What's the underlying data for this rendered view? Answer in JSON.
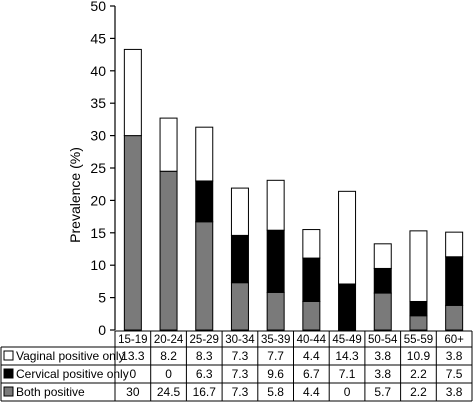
{
  "chart_data": {
    "type": "bar",
    "stacked": true,
    "ylabel": "Prevalence (%)",
    "xlabel": "",
    "ylim": [
      0,
      50
    ],
    "yticks": [
      0,
      5,
      10,
      15,
      20,
      25,
      30,
      35,
      40,
      45,
      50
    ],
    "grid": false,
    "legend_placement": "table-below",
    "categories": [
      "15-19",
      "20-24",
      "25-29",
      "30-34",
      "35-39",
      "40-44",
      "45-49",
      "50-54",
      "55-59",
      "60+"
    ],
    "series": [
      {
        "name": "Both positive",
        "color": "#7a7a7a",
        "values": [
          30,
          24.5,
          16.7,
          7.3,
          5.8,
          4.4,
          0,
          5.7,
          2.2,
          3.8
        ]
      },
      {
        "name": "Cervical positive only",
        "color": "#000000",
        "values": [
          0,
          0,
          6.3,
          7.3,
          9.6,
          6.7,
          7.1,
          3.8,
          2.2,
          7.5
        ]
      },
      {
        "name": "Vaginal positive only",
        "color": "#ffffff",
        "values": [
          13.3,
          8.2,
          8.3,
          7.3,
          7.7,
          4.4,
          14.3,
          3.8,
          10.9,
          3.8
        ]
      }
    ],
    "table_rows": [
      {
        "label": "Vaginal positive only",
        "color": "#ffffff",
        "values": [
          "13.3",
          "8.2",
          "8.3",
          "7.3",
          "7.7",
          "4.4",
          "14.3",
          "3.8",
          "10.9",
          "3.8"
        ]
      },
      {
        "label": "Cervical positive only",
        "color": "#000000",
        "values": [
          "0",
          "0",
          "6.3",
          "7.3",
          "9.6",
          "6.7",
          "7.1",
          "3.8",
          "2.2",
          "7.5"
        ]
      },
      {
        "label": "Both positive",
        "color": "#7a7a7a",
        "values": [
          "30",
          "24.5",
          "16.7",
          "7.3",
          "5.8",
          "4.4",
          "0",
          "5.7",
          "2.2",
          "3.8"
        ]
      }
    ]
  }
}
